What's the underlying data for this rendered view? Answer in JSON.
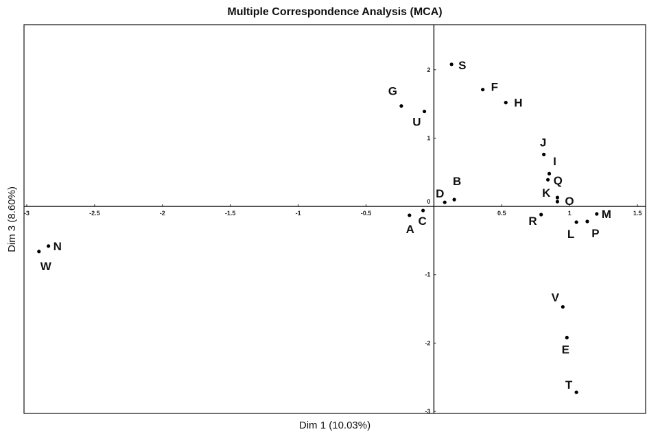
{
  "chart_data": {
    "type": "scatter",
    "title": "Multiple Correspondence Analysis (MCA)",
    "xlabel": "Dim 1 (10.03%)",
    "ylabel": "Dim 3 (8.60%)",
    "xlim": [
      -3.02,
      1.56
    ],
    "ylim": [
      -3.03,
      2.66
    ],
    "xticks": [
      -3,
      -2.5,
      -2,
      -1.5,
      -1,
      -0.5,
      0.5,
      1,
      1.5
    ],
    "yticks": [
      -3,
      -2,
      -1,
      0,
      1,
      2
    ],
    "xtick_labels": [
      "-3",
      "-2.5",
      "-2",
      "-1.5",
      "-1",
      "-0.5",
      "0.5",
      "1",
      "1.5"
    ],
    "ytick_labels": [
      "-3",
      "-2",
      "-1",
      "0",
      "1",
      "2"
    ],
    "grid": false,
    "points": [
      {
        "label": "S",
        "x": 0.13,
        "y": 2.08
      },
      {
        "label": "F",
        "x": 0.36,
        "y": 1.71
      },
      {
        "label": "H",
        "x": 0.53,
        "y": 1.52
      },
      {
        "label": "G",
        "x": -0.24,
        "y": 1.47
      },
      {
        "label": "U",
        "x": -0.07,
        "y": 1.39
      },
      {
        "label": "J",
        "x": 0.81,
        "y": 0.76
      },
      {
        "label": "I",
        "x": 0.85,
        "y": 0.48
      },
      {
        "label": "Q",
        "x": 0.84,
        "y": 0.39
      },
      {
        "label": "K",
        "x": 0.91,
        "y": 0.13
      },
      {
        "label": "O",
        "x": 0.91,
        "y": 0.07
      },
      {
        "label": "B",
        "x": 0.15,
        "y": 0.1
      },
      {
        "label": "D",
        "x": 0.08,
        "y": 0.06
      },
      {
        "label": "A",
        "x": -0.18,
        "y": -0.13
      },
      {
        "label": "C",
        "x": -0.08,
        "y": -0.06
      },
      {
        "label": "R",
        "x": 0.79,
        "y": -0.12
      },
      {
        "label": "M",
        "x": 1.2,
        "y": -0.11
      },
      {
        "label": "L",
        "x": 1.05,
        "y": -0.23
      },
      {
        "label": "P",
        "x": 1.13,
        "y": -0.22
      },
      {
        "label": "N",
        "x": -2.84,
        "y": -0.58
      },
      {
        "label": "W",
        "x": -2.91,
        "y": -0.66
      },
      {
        "label": "V",
        "x": 0.95,
        "y": -1.47
      },
      {
        "label": "E",
        "x": 0.98,
        "y": -1.92
      },
      {
        "label": "T",
        "x": 1.05,
        "y": -2.72
      }
    ]
  }
}
